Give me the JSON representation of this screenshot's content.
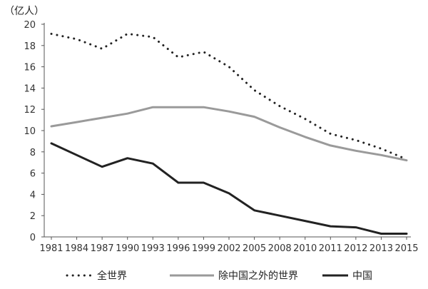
{
  "chart_data": {
    "type": "line",
    "y_unit_label": "（亿人）",
    "x_tick_labels": [
      "1981",
      "1984",
      "1987",
      "1990",
      "1993",
      "1996",
      "1999",
      "2002",
      "2005",
      "2008",
      "2010",
      "2011",
      "2012",
      "2013",
      "2015"
    ],
    "ylim": [
      0,
      20
    ],
    "y_ticks": [
      0,
      2,
      4,
      6,
      8,
      10,
      12,
      14,
      16,
      18,
      20
    ],
    "grid": false,
    "legend_position": "bottom",
    "series": [
      {
        "name": "全世界",
        "style": "dotted",
        "color": "#222222",
        "values": [
          19.1,
          18.6,
          17.7,
          19.1,
          18.8,
          16.9,
          17.4,
          16.0,
          13.8,
          12.3,
          11.1,
          9.7,
          9.1,
          8.3,
          7.3
        ]
      },
      {
        "name": "除中国之外的世界",
        "style": "solid",
        "color": "#9a9a9a",
        "values": [
          10.4,
          10.8,
          11.2,
          11.6,
          12.2,
          12.2,
          12.2,
          11.8,
          11.3,
          10.3,
          9.4,
          8.6,
          8.1,
          7.7,
          7.2
        ]
      },
      {
        "name": "中国",
        "style": "solid",
        "color": "#222222",
        "values": [
          8.8,
          7.7,
          6.6,
          7.4,
          6.9,
          5.1,
          5.1,
          4.1,
          2.5,
          2.0,
          1.5,
          1.0,
          0.9,
          0.3,
          0.3
        ]
      }
    ]
  }
}
